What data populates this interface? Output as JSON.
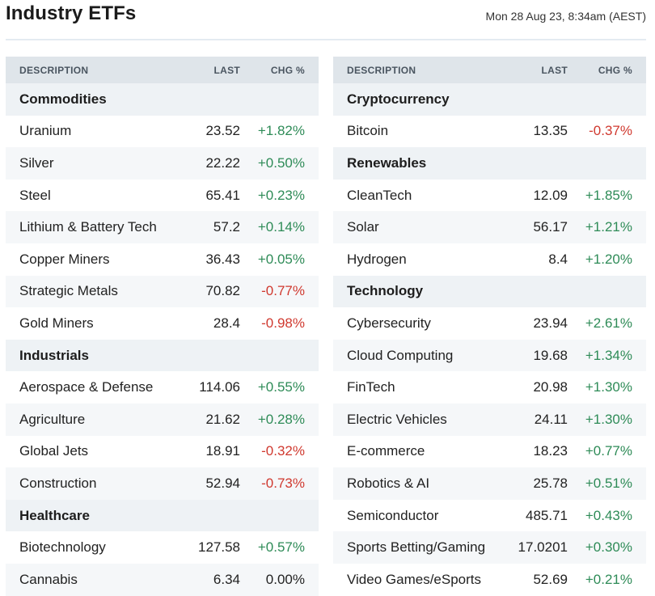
{
  "header": {
    "title": "Industry ETFs",
    "timestamp": "Mon 28 Aug 23, 8:34am (AEST)"
  },
  "columns": {
    "description": "DESCRIPTION",
    "last": "LAST",
    "chg": "CHG %"
  },
  "colors": {
    "positive": "#2e8b57",
    "negative": "#d0392f",
    "header_bg": "#dfe5ea",
    "category_bg": "#eef2f5"
  },
  "tables": [
    {
      "rows": [
        {
          "type": "category",
          "name": "Commodities"
        },
        {
          "type": "item",
          "name": "Uranium",
          "last": "23.52",
          "chg": "+1.82%",
          "dir": "pos"
        },
        {
          "type": "item",
          "name": "Silver",
          "last": "22.22",
          "chg": "+0.50%",
          "dir": "pos"
        },
        {
          "type": "item",
          "name": "Steel",
          "last": "65.41",
          "chg": "+0.23%",
          "dir": "pos"
        },
        {
          "type": "item",
          "name": "Lithium & Battery Tech",
          "last": "57.2",
          "chg": "+0.14%",
          "dir": "pos"
        },
        {
          "type": "item",
          "name": "Copper Miners",
          "last": "36.43",
          "chg": "+0.05%",
          "dir": "pos"
        },
        {
          "type": "item",
          "name": "Strategic Metals",
          "last": "70.82",
          "chg": "-0.77%",
          "dir": "neg"
        },
        {
          "type": "item",
          "name": "Gold Miners",
          "last": "28.4",
          "chg": "-0.98%",
          "dir": "neg"
        },
        {
          "type": "category",
          "name": "Industrials"
        },
        {
          "type": "item",
          "name": "Aerospace & Defense",
          "last": "114.06",
          "chg": "+0.55%",
          "dir": "pos"
        },
        {
          "type": "item",
          "name": "Agriculture",
          "last": "21.62",
          "chg": "+0.28%",
          "dir": "pos"
        },
        {
          "type": "item",
          "name": "Global Jets",
          "last": "18.91",
          "chg": "-0.32%",
          "dir": "neg"
        },
        {
          "type": "item",
          "name": "Construction",
          "last": "52.94",
          "chg": "-0.73%",
          "dir": "neg"
        },
        {
          "type": "category",
          "name": "Healthcare"
        },
        {
          "type": "item",
          "name": "Biotechnology",
          "last": "127.58",
          "chg": "+0.57%",
          "dir": "pos"
        },
        {
          "type": "item",
          "name": "Cannabis",
          "last": "6.34",
          "chg": "0.00%",
          "dir": "flat"
        }
      ]
    },
    {
      "rows": [
        {
          "type": "category",
          "name": "Cryptocurrency"
        },
        {
          "type": "item",
          "name": "Bitcoin",
          "last": "13.35",
          "chg": "-0.37%",
          "dir": "neg"
        },
        {
          "type": "category",
          "name": "Renewables"
        },
        {
          "type": "item",
          "name": "CleanTech",
          "last": "12.09",
          "chg": "+1.85%",
          "dir": "pos"
        },
        {
          "type": "item",
          "name": "Solar",
          "last": "56.17",
          "chg": "+1.21%",
          "dir": "pos"
        },
        {
          "type": "item",
          "name": "Hydrogen",
          "last": "8.4",
          "chg": "+1.20%",
          "dir": "pos"
        },
        {
          "type": "category",
          "name": "Technology"
        },
        {
          "type": "item",
          "name": "Cybersecurity",
          "last": "23.94",
          "chg": "+2.61%",
          "dir": "pos"
        },
        {
          "type": "item",
          "name": "Cloud Computing",
          "last": "19.68",
          "chg": "+1.34%",
          "dir": "pos"
        },
        {
          "type": "item",
          "name": "FinTech",
          "last": "20.98",
          "chg": "+1.30%",
          "dir": "pos"
        },
        {
          "type": "item",
          "name": "Electric Vehicles",
          "last": "24.11",
          "chg": "+1.30%",
          "dir": "pos"
        },
        {
          "type": "item",
          "name": "E-commerce",
          "last": "18.23",
          "chg": "+0.77%",
          "dir": "pos"
        },
        {
          "type": "item",
          "name": "Robotics & AI",
          "last": "25.78",
          "chg": "+0.51%",
          "dir": "pos"
        },
        {
          "type": "item",
          "name": "Semiconductor",
          "last": "485.71",
          "chg": "+0.43%",
          "dir": "pos"
        },
        {
          "type": "item",
          "name": "Sports Betting/Gaming",
          "last": "17.0201",
          "chg": "+0.30%",
          "dir": "pos"
        },
        {
          "type": "item",
          "name": "Video Games/eSports",
          "last": "52.69",
          "chg": "+0.21%",
          "dir": "pos"
        }
      ]
    }
  ]
}
